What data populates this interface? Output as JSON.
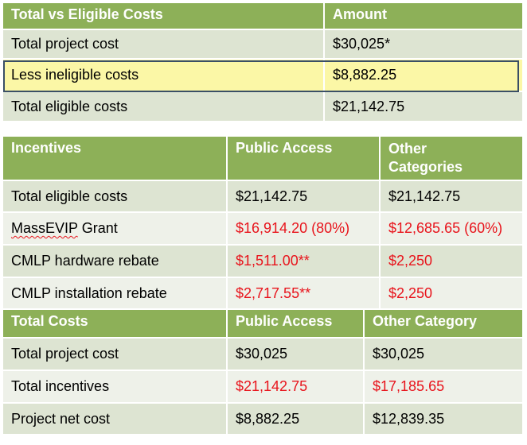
{
  "table1": {
    "headers": [
      "Total vs Eligible Costs",
      "Amount"
    ],
    "rows": [
      [
        "Total project cost",
        "$30,025*"
      ],
      [
        "Less ineligible costs",
        "$8,882.25"
      ],
      [
        "Total eligible costs",
        "$21,142.75"
      ]
    ]
  },
  "table2": {
    "headers": [
      "Incentives",
      "Public Access",
      "Other",
      "Categories"
    ],
    "rows": [
      [
        "Total eligible costs",
        "$21,142.75",
        "$21,142.75"
      ],
      [
        "MassEVIP",
        " Grant",
        "$16,914.20 (80%)",
        "$12,685.65 (60%)"
      ],
      [
        "CMLP hardware rebate",
        "$1,511.00**",
        "$2,250"
      ],
      [
        "CMLP installation rebate",
        "$2,717.55**",
        "$2,250"
      ]
    ]
  },
  "table3": {
    "headers": [
      "Total Costs",
      "Public Access",
      "Other Category"
    ],
    "rows": [
      [
        "Total project cost",
        "$30,025",
        "$30,025"
      ],
      [
        "Total incentives",
        "$21,142.75",
        "$17,185.65"
      ],
      [
        "Project net cost",
        "$8,882.25",
        "$12,839.35"
      ]
    ]
  },
  "colors": {
    "header_bg": "#8db058",
    "row_odd": "#dde4d2",
    "row_even": "#eef1e9",
    "highlight": "#fbf7a6",
    "highlight_border": "#3a4f66",
    "negative_text": "#e8141c"
  }
}
